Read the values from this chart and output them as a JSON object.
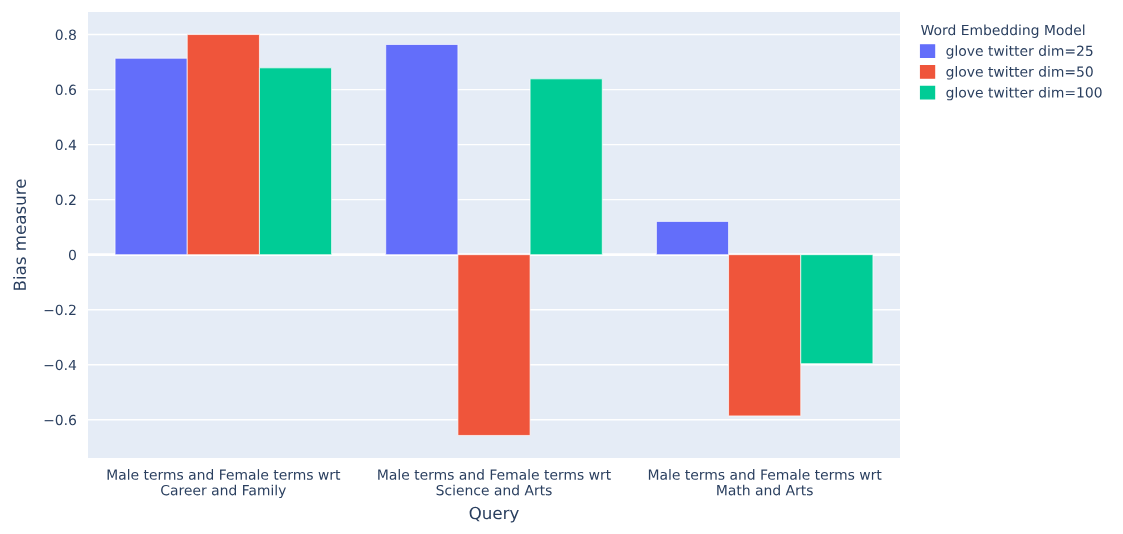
{
  "chart_data": {
    "type": "bar",
    "xlabel": "Query",
    "ylabel": "Bias measure",
    "legend_title": "Word Embedding Model",
    "categories": [
      "Male terms and Female terms wrt\nCareer and Family",
      "Male terms and Female terms wrt\nScience and Arts",
      "Male terms and Female terms wrt\nMath and Arts"
    ],
    "series": [
      {
        "name": "glove twitter dim=25",
        "color": "#636efa",
        "values": [
          0.714,
          0.764,
          0.121
        ]
      },
      {
        "name": "glove twitter dim=50",
        "color": "#ef553b",
        "values": [
          0.8,
          -0.657,
          -0.586
        ]
      },
      {
        "name": "glove twitter dim=100",
        "color": "#00cc96",
        "values": [
          0.679,
          0.639,
          -0.396
        ]
      }
    ],
    "ylim": [
      -0.739,
      0.882
    ],
    "yticks": [
      {
        "value": -0.6,
        "label": "−0.6"
      },
      {
        "value": -0.4,
        "label": "−0.4"
      },
      {
        "value": -0.2,
        "label": "−0.2"
      },
      0,
      0.2,
      0.4,
      0.6,
      0.8
    ],
    "grid": "y",
    "legend": "top right"
  }
}
